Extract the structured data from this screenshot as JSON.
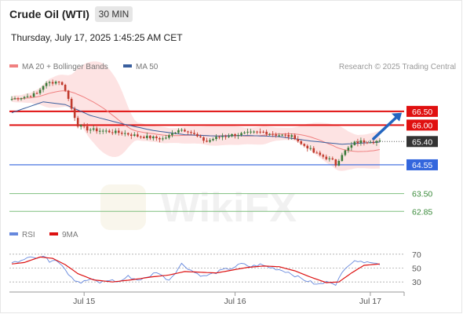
{
  "header": {
    "instrument": "Crude Oil (WTI)",
    "timeframe": "30 MIN",
    "timestamp": "Thursday, July 17, 2025 1:45:25 AM CET"
  },
  "legend": {
    "ma20": {
      "label": "MA 20 + Bollinger Bands",
      "color": "#f08080"
    },
    "ma50": {
      "label": "MA 50",
      "color": "#3a5f9e"
    }
  },
  "credit": "Research © 2025 Trading Central",
  "watermark": "WikiFX",
  "rsi_legend": {
    "rsi": {
      "label": "RSI",
      "color": "#6688dd"
    },
    "ma9": {
      "label": "9MA",
      "color": "#dd1111"
    }
  },
  "colors": {
    "up": "#3a7a3a",
    "down": "#c0392b",
    "resistance": "#e01010",
    "pivot": "#3366dd",
    "support": "#7fbf7f",
    "current": "#333333",
    "arrow": "#2466c0"
  },
  "chart_data": [
    {
      "type": "candlestick",
      "x_tick_labels": [
        "Jul 15",
        "Jul 16",
        "Jul 17"
      ],
      "x_tick_index": [
        23,
        71,
        114
      ],
      "n_bars": 125,
      "ylim": [
        62.4,
        67.7
      ],
      "price_levels": [
        {
          "label": "66.50",
          "value": 66.5,
          "kind": "resistance"
        },
        {
          "label": "66.00",
          "value": 66.0,
          "kind": "resistance"
        },
        {
          "label": "65.40",
          "value": 65.4,
          "kind": "current"
        },
        {
          "label": "64.55",
          "value": 64.55,
          "kind": "pivot"
        },
        {
          "label": "63.50",
          "value": 63.5,
          "kind": "support"
        },
        {
          "label": "62.85",
          "value": 62.85,
          "kind": "support"
        }
      ],
      "close_anchors": [
        [
          0,
          66.95
        ],
        [
          5,
          67.05
        ],
        [
          8,
          67.15
        ],
        [
          10,
          67.45
        ],
        [
          12,
          67.55
        ],
        [
          15,
          67.6
        ],
        [
          17,
          67.3
        ],
        [
          19,
          66.6
        ],
        [
          21,
          66.0
        ],
        [
          24,
          65.85
        ],
        [
          28,
          65.8
        ],
        [
          32,
          65.75
        ],
        [
          36,
          65.7
        ],
        [
          40,
          65.6
        ],
        [
          44,
          65.55
        ],
        [
          48,
          65.5
        ],
        [
          50,
          65.6
        ],
        [
          53,
          65.85
        ],
        [
          56,
          65.8
        ],
        [
          58,
          65.65
        ],
        [
          60,
          65.5
        ],
        [
          62,
          65.4
        ],
        [
          64,
          65.5
        ],
        [
          67,
          65.6
        ],
        [
          71,
          65.65
        ],
        [
          75,
          65.7
        ],
        [
          80,
          65.75
        ],
        [
          84,
          65.65
        ],
        [
          88,
          65.6
        ],
        [
          90,
          65.55
        ],
        [
          92,
          65.3
        ],
        [
          94,
          65.2
        ],
        [
          96,
          65.0
        ],
        [
          98,
          64.9
        ],
        [
          100,
          64.8
        ],
        [
          102,
          64.7
        ],
        [
          103,
          64.55
        ],
        [
          105,
          64.95
        ],
        [
          107,
          65.15
        ],
        [
          109,
          65.35
        ],
        [
          111,
          65.4
        ],
        [
          114,
          65.42
        ],
        [
          117,
          65.4
        ]
      ],
      "ma50_anchors": [
        [
          0,
          66.45
        ],
        [
          10,
          66.85
        ],
        [
          17,
          66.75
        ],
        [
          25,
          66.35
        ],
        [
          35,
          66.05
        ],
        [
          45,
          65.8
        ],
        [
          55,
          65.65
        ],
        [
          65,
          65.6
        ],
        [
          75,
          65.62
        ],
        [
          85,
          65.58
        ],
        [
          95,
          65.42
        ],
        [
          105,
          65.3
        ],
        [
          117,
          65.38
        ]
      ],
      "arrow": {
        "from_bar": 114,
        "from_value": 65.5,
        "to_value": 66.45
      },
      "rsi": {
        "ylim": [
          20,
          80
        ],
        "levels": [
          70,
          50,
          30
        ],
        "level_labels": [
          "70",
          "50",
          "30"
        ],
        "rsi_anchors": [
          [
            0,
            57
          ],
          [
            3,
            62
          ],
          [
            6,
            68
          ],
          [
            8,
            64
          ],
          [
            10,
            67
          ],
          [
            12,
            60
          ],
          [
            14,
            63
          ],
          [
            16,
            55
          ],
          [
            18,
            42
          ],
          [
            20,
            33
          ],
          [
            22,
            29
          ],
          [
            25,
            34
          ],
          [
            28,
            29
          ],
          [
            31,
            33
          ],
          [
            34,
            30
          ],
          [
            37,
            38
          ],
          [
            40,
            33
          ],
          [
            43,
            36
          ],
          [
            46,
            45
          ],
          [
            48,
            38
          ],
          [
            50,
            33
          ],
          [
            52,
            44
          ],
          [
            54,
            56
          ],
          [
            56,
            50
          ],
          [
            58,
            44
          ],
          [
            61,
            38
          ],
          [
            64,
            42
          ],
          [
            67,
            47
          ],
          [
            70,
            50
          ],
          [
            73,
            56
          ],
          [
            76,
            52
          ],
          [
            79,
            55
          ],
          [
            82,
            51
          ],
          [
            85,
            48
          ],
          [
            88,
            44
          ],
          [
            91,
            37
          ],
          [
            93,
            33
          ],
          [
            95,
            30
          ],
          [
            97,
            26
          ],
          [
            99,
            28
          ],
          [
            101,
            31
          ],
          [
            103,
            27
          ],
          [
            105,
            42
          ],
          [
            107,
            55
          ],
          [
            109,
            62
          ],
          [
            111,
            58
          ],
          [
            113,
            61
          ],
          [
            115,
            57
          ],
          [
            117,
            56
          ]
        ],
        "ma9_anchors": [
          [
            0,
            56
          ],
          [
            4,
            58
          ],
          [
            9,
            66
          ],
          [
            13,
            64
          ],
          [
            17,
            55
          ],
          [
            21,
            42
          ],
          [
            26,
            33
          ],
          [
            32,
            30
          ],
          [
            38,
            33
          ],
          [
            44,
            37
          ],
          [
            50,
            40
          ],
          [
            55,
            45
          ],
          [
            60,
            44
          ],
          [
            65,
            43
          ],
          [
            70,
            47
          ],
          [
            75,
            51
          ],
          [
            80,
            53
          ],
          [
            85,
            52
          ],
          [
            90,
            46
          ],
          [
            95,
            37
          ],
          [
            100,
            29
          ],
          [
            104,
            30
          ],
          [
            108,
            43
          ],
          [
            112,
            54
          ],
          [
            117,
            56
          ]
        ]
      }
    }
  ]
}
